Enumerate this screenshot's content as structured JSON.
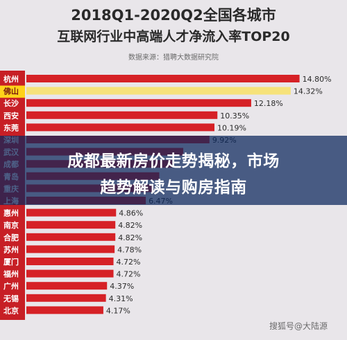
{
  "title_line1": "2018Q1-2020Q2全国各城市",
  "title_line2": "互联网行业中高端人才净流入率TOP20",
  "source_note": "数据来源：猎聘大数据研究院",
  "banner_line1": "成都最新房价走势揭秘，市场",
  "banner_line2": "趋势解读与购房指南",
  "watermark": "搜狐号@大陆源",
  "colors": {
    "bar": "#d62126",
    "highlight": "#f6e27a",
    "city_col": "#c71f25",
    "highlight_city": "#ffd21a"
  },
  "chart_data": {
    "type": "bar",
    "orientation": "horizontal",
    "categories": [
      "杭州",
      "佛山",
      "长沙",
      "西安",
      "东莞",
      "深圳",
      "武汉",
      "成都",
      "青岛",
      "重庆",
      "上海",
      "惠州",
      "南京",
      "合肥",
      "苏州",
      "厦门",
      "福州",
      "广州",
      "无锡",
      "北京"
    ],
    "values": [
      14.8,
      14.32,
      12.18,
      10.35,
      10.19,
      9.92,
      8.5,
      7.9,
      7.2,
      6.9,
      6.47,
      4.86,
      4.82,
      4.82,
      4.78,
      4.72,
      4.72,
      4.37,
      4.31,
      4.17
    ],
    "value_labels": [
      "14.80%",
      "14.32%",
      "12.18%",
      "10.35%",
      "10.19%",
      "9.92%",
      "",
      "",
      "",
      "",
      "6.47%",
      "4.86%",
      "4.82%",
      "4.82%",
      "4.78%",
      "4.72%",
      "4.72%",
      "4.37%",
      "4.31%",
      "4.17%"
    ],
    "highlight_category": "佛山",
    "xlim": [
      0,
      16
    ]
  }
}
